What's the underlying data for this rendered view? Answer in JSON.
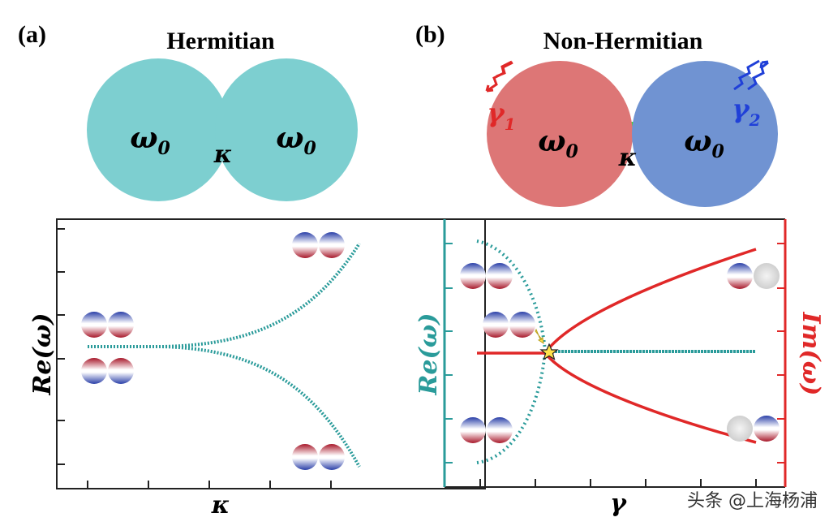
{
  "panels": [
    {
      "label": "(a)",
      "title": "Hermitian",
      "nodes": [
        {
          "symbol": "ω",
          "sub": "0"
        },
        {
          "symbol": "ω",
          "sub": "0"
        }
      ],
      "coupling": "κ",
      "y_axis": "Re(ω)",
      "x_axis": "κ"
    },
    {
      "label": "(b)",
      "title": "Non-Hermitian",
      "nodes": [
        {
          "symbol": "ω",
          "sub": "0",
          "loss": {
            "symbol": "γ",
            "sub": "1"
          }
        },
        {
          "symbol": "ω",
          "sub": "0",
          "loss": {
            "symbol": "γ",
            "sub": "2"
          }
        }
      ],
      "coupling": "κ",
      "y_axis": "Re(ω)",
      "y2_axis": "Im(ω)",
      "x_axis": "γ"
    }
  ],
  "watermark": "头条 @上海杨浦"
}
